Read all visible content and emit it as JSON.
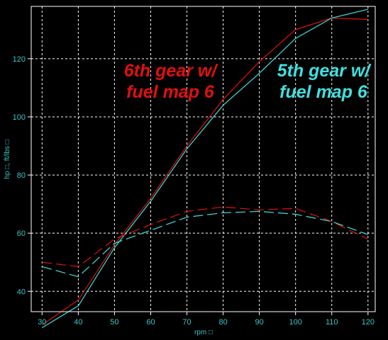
{
  "chart_data": {
    "type": "line",
    "xlabel": "rpm □",
    "ylabel": "hp □, ft/lbs □",
    "x": [
      30,
      40,
      50,
      60,
      70,
      80,
      90,
      100,
      110,
      120
    ],
    "xlim": [
      27,
      122
    ],
    "ylim": [
      33,
      138
    ],
    "x_ticks": [
      30,
      40,
      50,
      60,
      70,
      80,
      90,
      100,
      110,
      120
    ],
    "y_ticks": [
      40,
      60,
      80,
      100,
      120
    ],
    "grid": true,
    "colors": {
      "background": "#000000",
      "frame": "#ffffff",
      "grid": "#ffffff",
      "text": "#39c6c6",
      "red": "#e01010",
      "cyan": "#40e0e0"
    },
    "series": [
      {
        "color": "#e01010",
        "style": "solid",
        "values": [
          28.5,
          37,
          56,
          72,
          90,
          106,
          119,
          130,
          134,
          133.5
        ]
      },
      {
        "color": "#40e0e0",
        "style": "solid",
        "values": [
          27.5,
          35,
          55,
          71,
          89,
          104,
          115,
          127,
          134,
          137
        ]
      },
      {
        "color": "#e01010",
        "style": "dashed",
        "values": [
          50,
          48.5,
          58,
          63,
          67.5,
          69,
          68,
          68.5,
          64,
          58
        ]
      },
      {
        "color": "#40e0e0",
        "style": "dashed",
        "values": [
          48.5,
          45,
          56.5,
          61,
          65.5,
          67,
          67.5,
          66.5,
          64,
          59.5
        ]
      }
    ],
    "annotations": [
      {
        "lines": [
          "6th gear w/",
          "fuel map 6"
        ],
        "color": "#e01010"
      },
      {
        "lines": [
          "5th gear w/",
          "fuel map 6"
        ],
        "color": "#40e0e0"
      }
    ]
  }
}
